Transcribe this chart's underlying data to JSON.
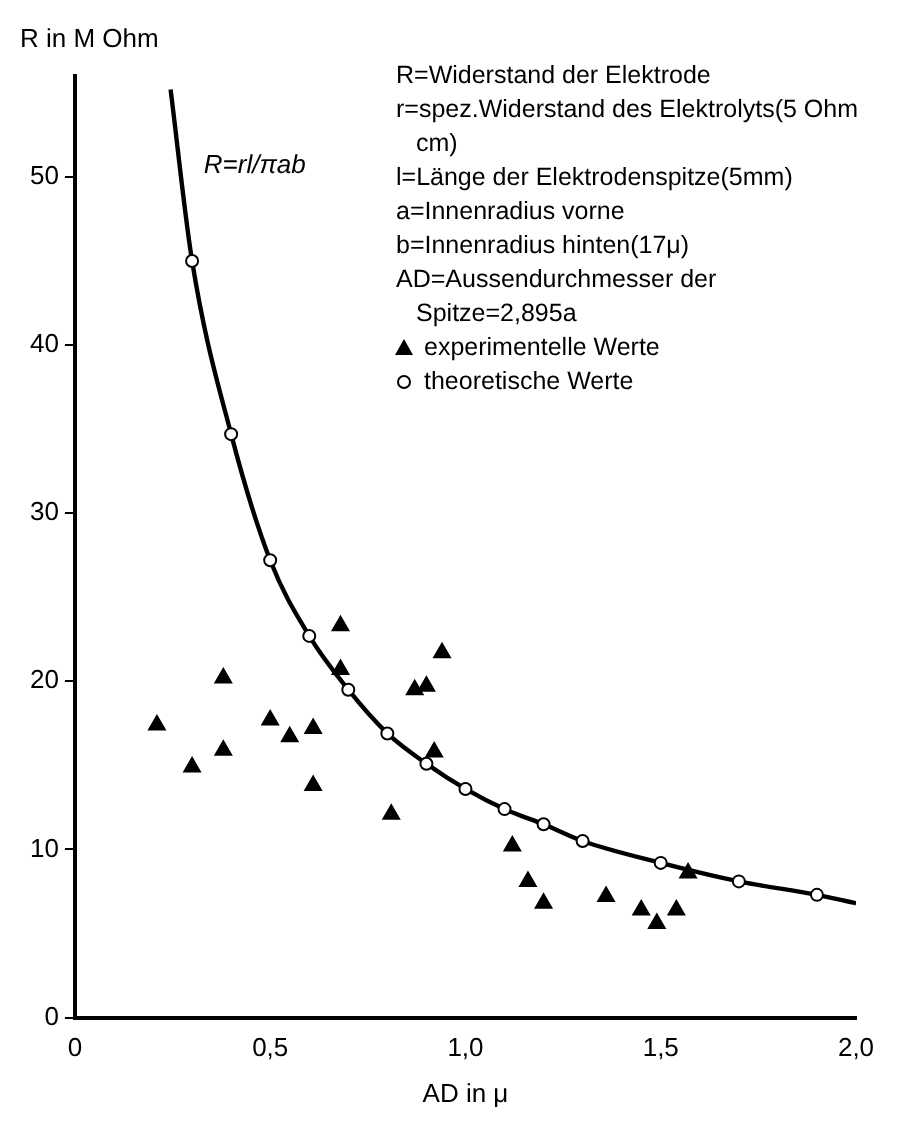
{
  "chart_data": {
    "type": "scatter",
    "xlabel": "AD in μ",
    "ylabel": "R in M Ohm",
    "xlim": [
      0,
      2.0
    ],
    "ylim": [
      0,
      56
    ],
    "xticks": [
      0,
      {
        "value": 0.5,
        "label": "0,5"
      },
      {
        "value": 1.0,
        "label": "1,0"
      },
      {
        "value": 1.5,
        "label": "1,5"
      },
      {
        "value": 2.0,
        "label": "2,0"
      }
    ],
    "yticks": [
      0,
      10,
      20,
      30,
      40,
      50
    ],
    "grid": false,
    "legend": "top right",
    "annotations": [
      "R=rl/πab",
      "R=Widerstand der Elektrode",
      "r=spez.Widerstand des Elektrolyts(5 Ohm cm)",
      "l=Länge der Elektrodenspitze(5mm)",
      "a=Innenradius vorne",
      "b=Innenradius hinten(17μ)",
      "AD=Aussendurchmesser der Spitze=2,895a"
    ],
    "series": [
      {
        "type": "line",
        "color": "#000000",
        "marker": "none",
        "x": [
          0.245,
          0.3,
          0.4,
          0.5,
          0.6,
          0.7,
          0.8,
          0.9,
          1.0,
          1.1,
          1.2,
          1.3,
          1.5,
          1.7,
          1.9,
          2.0
        ],
        "values": [
          55.2,
          45.0,
          34.7,
          27.2,
          22.7,
          19.5,
          16.9,
          15.1,
          13.6,
          12.4,
          11.5,
          10.5,
          9.2,
          8.1,
          7.3,
          6.8
        ]
      },
      {
        "name": "experimentelle Werte",
        "color": "#000000",
        "marker": "triangle",
        "x": [
          0.21,
          0.3,
          0.38,
          0.38,
          0.5,
          0.55,
          0.61,
          0.61,
          0.68,
          0.68,
          0.81,
          0.87,
          0.9,
          0.92,
          0.94,
          1.12,
          1.16,
          1.2,
          1.36,
          1.45,
          1.49,
          1.54,
          1.57
        ],
        "values": [
          17.4,
          14.9,
          20.2,
          15.9,
          17.7,
          16.7,
          17.2,
          13.8,
          23.3,
          20.7,
          12.1,
          19.5,
          19.7,
          15.8,
          21.7,
          10.2,
          8.1,
          6.8,
          7.2,
          6.4,
          5.6,
          6.4,
          8.6
        ]
      },
      {
        "name": "theoretische Werte",
        "color": "#000000",
        "marker": "circle",
        "x": [
          0.3,
          0.4,
          0.5,
          0.6,
          0.7,
          0.8,
          0.9,
          1.0,
          1.1,
          1.2,
          1.3,
          1.5,
          1.7,
          1.9
        ],
        "values": [
          45.0,
          34.7,
          27.2,
          22.7,
          19.5,
          16.9,
          15.1,
          13.6,
          12.4,
          11.5,
          10.5,
          9.2,
          8.1,
          7.3
        ]
      }
    ]
  }
}
